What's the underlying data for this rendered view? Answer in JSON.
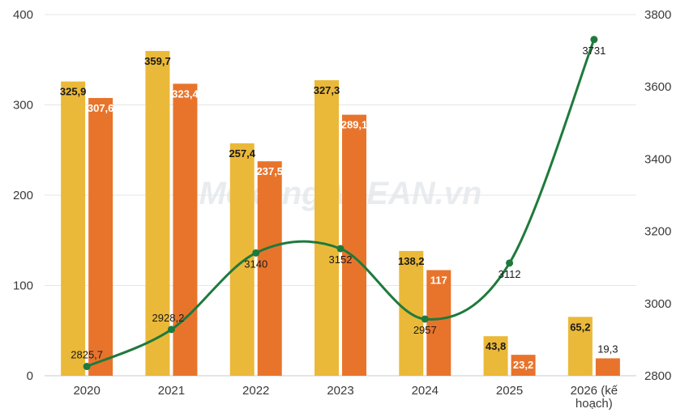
{
  "watermark": "MekongASEAN.vn",
  "chart_data": {
    "type": "bar",
    "categories": [
      "2020",
      "2021",
      "2022",
      "2023",
      "2024",
      "2025",
      "2026 (kế hoạch)"
    ],
    "series": [
      {
        "type": "bar",
        "axis": "left",
        "color": "#EBB939",
        "values": [
          325.9,
          359.7,
          257.4,
          327.3,
          138.2,
          43.8,
          65.2
        ],
        "labels": [
          "325,9",
          "359,7",
          "257,4",
          "327,3",
          "138,2",
          "43,8",
          "65,2"
        ]
      },
      {
        "type": "bar",
        "axis": "left",
        "color": "#E8742C",
        "values": [
          307.6,
          323.4,
          237.5,
          289.1,
          117,
          23.2,
          19.3
        ],
        "labels": [
          "307,6",
          "323,4",
          "237,5",
          "289,1",
          "117",
          "23,2",
          "19,3"
        ]
      },
      {
        "type": "line",
        "axis": "right",
        "color": "#1E7A3C",
        "values": [
          2825.7,
          2928.2,
          3140,
          3152,
          2957,
          3112,
          3731
        ],
        "labels": [
          "2825,7",
          "2928,2",
          "3140",
          "3152",
          "2957",
          "3112",
          "3731"
        ]
      }
    ],
    "y_left": {
      "ticks": [
        "0",
        "100",
        "200",
        "300",
        "400"
      ],
      "lim": [
        0,
        400
      ]
    },
    "y_right": {
      "ticks": [
        "2800",
        "3000",
        "3200",
        "3400",
        "3600",
        "3800"
      ],
      "lim": [
        2800,
        3800
      ]
    },
    "grid": true,
    "legend": "none"
  }
}
